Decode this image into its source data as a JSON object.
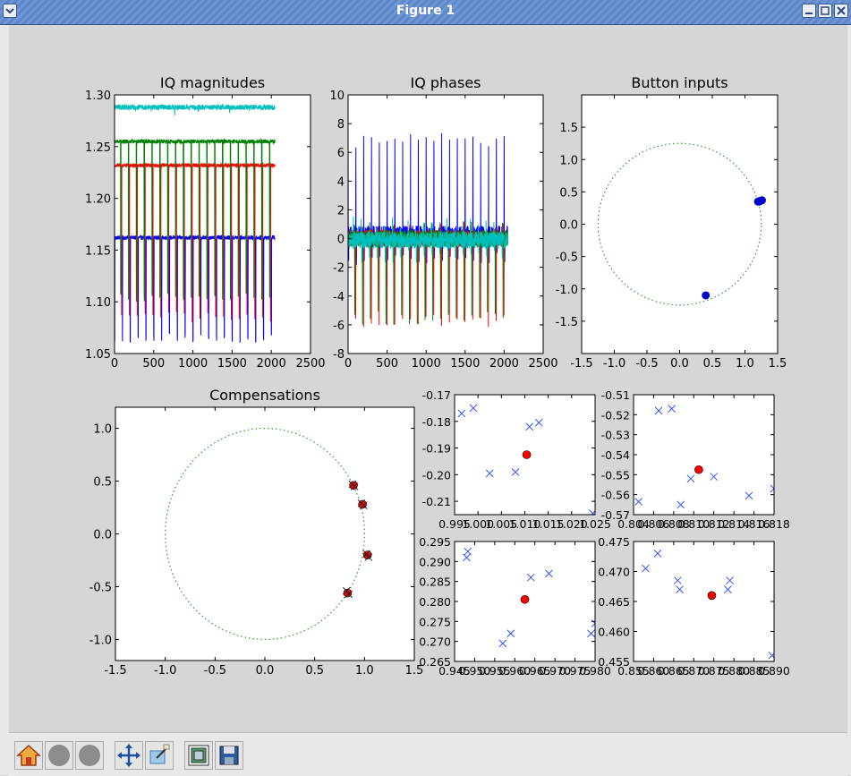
{
  "window": {
    "title": "Figure 1"
  },
  "toolbar": {
    "items": [
      {
        "name": "home",
        "icon": "home-icon"
      },
      {
        "name": "back",
        "icon": "back-icon"
      },
      {
        "name": "forward",
        "icon": "forward-icon"
      },
      {
        "name": "pan",
        "icon": "pan-icon"
      },
      {
        "name": "zoom",
        "icon": "zoom-icon"
      },
      {
        "name": "subplots",
        "icon": "subplots-icon"
      },
      {
        "name": "save",
        "icon": "save-icon"
      }
    ]
  },
  "colors": {
    "series": [
      "#0000ff",
      "#008000",
      "#ff0000",
      "#00bfbf"
    ],
    "circle": "#2ca02c",
    "marker_blue": "#0000cc",
    "marker_red": "#ff0000",
    "marker_x": "#3355ff"
  },
  "chart_data": [
    {
      "type": "line",
      "title": "IQ magnitudes",
      "xlim": [
        0,
        2500
      ],
      "ylim": [
        1.05,
        1.3
      ],
      "xticks": [
        0,
        500,
        1000,
        1500,
        2000,
        2500
      ],
      "xtick_labels": [
        "0",
        "500",
        "1000",
        "1500",
        "2000",
        "2500"
      ],
      "yticks": [
        1.05,
        1.1,
        1.15,
        1.2,
        1.25,
        1.3
      ],
      "ytick_labels": [
        "1.05",
        "1.10",
        "1.15",
        "1.20",
        "1.25",
        "1.30"
      ],
      "samples": 2048,
      "period": 100,
      "series": [
        {
          "color": "#0000ff",
          "level": 1.162,
          "spike": 1.065,
          "noise": 0.002
        },
        {
          "color": "#ff0000",
          "level": 1.232,
          "spike": 1.085,
          "noise": 0.002
        },
        {
          "color": "#008000",
          "level": 1.255,
          "spike": 1.105,
          "noise": 0.002
        },
        {
          "color": "#00bfbf",
          "level": 1.288,
          "spike": 1.285,
          "noise": 0.0025
        }
      ]
    },
    {
      "type": "line",
      "title": "IQ phases",
      "xlim": [
        0,
        2500
      ],
      "ylim": [
        -8,
        10
      ],
      "xticks": [
        0,
        500,
        1000,
        1500,
        2000,
        2500
      ],
      "xtick_labels": [
        "0",
        "500",
        "1000",
        "1500",
        "2000",
        "2500"
      ],
      "yticks": [
        -8,
        -6,
        -4,
        -2,
        0,
        2,
        4,
        6,
        8,
        10
      ],
      "ytick_labels": [
        "-8",
        "-6",
        "-4",
        "-2",
        "0",
        "2",
        "4",
        "6",
        "8",
        "10"
      ],
      "samples": 2048,
      "period": 100,
      "series": [
        {
          "color": "#0000ff",
          "level": 0.2,
          "spike_hi": 6.8,
          "spike_lo": -1.5,
          "noise": 0.7
        },
        {
          "color": "#ff0000",
          "level": 0.0,
          "spike_hi": 0.6,
          "spike_lo": -5.8,
          "noise": 0.6
        },
        {
          "color": "#008000",
          "level": 0.0,
          "spike_hi": 0.9,
          "spike_lo": -5.5,
          "noise": 0.6
        },
        {
          "color": "#00bfbf",
          "level": -0.1,
          "spike_hi": 1.0,
          "spike_lo": -1.2,
          "noise": 0.6
        }
      ]
    },
    {
      "type": "scatter",
      "title": "Button inputs",
      "xlim": [
        -1.5,
        1.5
      ],
      "ylim": [
        -2.0,
        2.0
      ],
      "xticks": [
        -1.5,
        -1.0,
        -0.5,
        0.0,
        0.5,
        1.0,
        1.5
      ],
      "xtick_labels": [
        "-1.5",
        "-1.0",
        "-0.5",
        "0.0",
        "0.5",
        "1.0",
        "1.5"
      ],
      "yticks": [
        -1.5,
        -1.0,
        -0.5,
        0.0,
        0.5,
        1.0,
        1.5
      ],
      "ytick_labels": [
        "-1.5",
        "-1.0",
        "-0.5",
        "0.0",
        "0.5",
        "1.0",
        "1.5"
      ],
      "circle_radius": 1.25,
      "points": [
        [
          1.2,
          0.35
        ],
        [
          1.23,
          0.36
        ],
        [
          1.26,
          0.37
        ],
        [
          1.22,
          0.35
        ],
        [
          0.4,
          -1.1
        ]
      ]
    },
    {
      "type": "scatter",
      "title": "Compensations",
      "xlim": [
        -1.5,
        1.5
      ],
      "ylim": [
        -1.2,
        1.2
      ],
      "xticks": [
        -1.5,
        -1.0,
        -0.5,
        0.0,
        0.5,
        1.0,
        1.5
      ],
      "xtick_labels": [
        "-1.5",
        "-1.0",
        "-0.5",
        "0.0",
        "0.5",
        "1.0",
        "1.5"
      ],
      "yticks": [
        -1.0,
        -0.5,
        0.0,
        0.5,
        1.0
      ],
      "ytick_labels": [
        "-1.0",
        "-0.5",
        "0.0",
        "0.5",
        "1.0"
      ],
      "circle_radius": 1.0,
      "red_points": [
        [
          0.89,
          0.46
        ],
        [
          0.98,
          0.28
        ],
        [
          1.03,
          -0.2
        ],
        [
          0.83,
          -0.56
        ]
      ],
      "x_points": [
        [
          0.88,
          0.47
        ],
        [
          0.9,
          0.45
        ],
        [
          0.97,
          0.29
        ],
        [
          0.99,
          0.27
        ],
        [
          1.02,
          -0.19
        ],
        [
          1.04,
          -0.22
        ],
        [
          0.82,
          -0.54
        ],
        [
          0.84,
          -0.57
        ]
      ]
    },
    {
      "type": "scatter",
      "title": "",
      "xlim": [
        0.995,
        1.025
      ],
      "ylim": [
        -0.215,
        -0.17
      ],
      "xticks": [
        0.995,
        1.0,
        1.005,
        1.01,
        1.015,
        1.02,
        1.025
      ],
      "xtick_labels": [
        "0.995",
        "1.000",
        "1.005",
        "1.010",
        "1.015",
        "1.020",
        "1.025"
      ],
      "yticks": [
        -0.21,
        -0.2,
        -0.19,
        -0.18,
        -0.17
      ],
      "ytick_labels": [
        "-0.21",
        "-0.20",
        "-0.19",
        "-0.18",
        "-0.17"
      ],
      "red_points": [
        [
          1.0104,
          -0.1925
        ]
      ],
      "x_points": [
        [
          0.9965,
          -0.177
        ],
        [
          0.999,
          -0.175
        ],
        [
          1.0025,
          -0.1995
        ],
        [
          1.008,
          -0.199
        ],
        [
          1.011,
          -0.182
        ],
        [
          1.013,
          -0.1805
        ],
        [
          1.0245,
          -0.2145
        ]
      ]
    },
    {
      "type": "scatter",
      "title": "",
      "xlim": [
        0.804,
        0.818
      ],
      "ylim": [
        -0.57,
        -0.51
      ],
      "xticks": [
        0.804,
        0.806,
        0.808,
        0.81,
        0.812,
        0.814,
        0.816,
        0.818
      ],
      "xtick_labels": [
        "0.804",
        "0.806",
        "0.808",
        "0.810",
        "0.812",
        "0.814",
        "0.816",
        "0.818"
      ],
      "yticks": [
        -0.57,
        -0.56,
        -0.55,
        -0.54,
        -0.53,
        -0.52,
        -0.51
      ],
      "ytick_labels": [
        "-0.57",
        "-0.56",
        "-0.55",
        "-0.54",
        "-0.53",
        "-0.52",
        "-0.51"
      ],
      "red_points": [
        [
          0.8105,
          -0.5475
        ]
      ],
      "x_points": [
        [
          0.8045,
          -0.5635
        ],
        [
          0.8065,
          -0.518
        ],
        [
          0.8078,
          -0.517
        ],
        [
          0.8087,
          -0.565
        ],
        [
          0.8097,
          -0.552
        ],
        [
          0.812,
          -0.551
        ],
        [
          0.8155,
          -0.5605
        ],
        [
          0.818,
          -0.557
        ]
      ]
    },
    {
      "type": "scatter",
      "title": "",
      "xlim": [
        0.945,
        0.98
      ],
      "ylim": [
        0.265,
        0.295
      ],
      "xticks": [
        0.945,
        0.95,
        0.955,
        0.96,
        0.965,
        0.97,
        0.975,
        0.98
      ],
      "xtick_labels": [
        "0.945",
        "0.950",
        "0.955",
        "0.960",
        "0.965",
        "0.970",
        "0.975",
        "0.980"
      ],
      "yticks": [
        0.265,
        0.27,
        0.275,
        0.28,
        0.285,
        0.29,
        0.295
      ],
      "ytick_labels": [
        "0.265",
        "0.270",
        "0.275",
        "0.280",
        "0.285",
        "0.290",
        "0.295"
      ],
      "red_points": [
        [
          0.9625,
          0.2805
        ]
      ],
      "x_points": [
        [
          0.948,
          0.291
        ],
        [
          0.9483,
          0.2925
        ],
        [
          0.957,
          0.2695
        ],
        [
          0.959,
          0.272
        ],
        [
          0.964,
          0.286
        ],
        [
          0.9685,
          0.287
        ],
        [
          0.979,
          0.272
        ],
        [
          0.98,
          0.2745
        ]
      ]
    },
    {
      "type": "scatter",
      "title": "",
      "xlim": [
        0.855,
        0.89
      ],
      "ylim": [
        0.455,
        0.475
      ],
      "xticks": [
        0.855,
        0.86,
        0.865,
        0.87,
        0.875,
        0.88,
        0.885,
        0.89
      ],
      "xtick_labels": [
        "0.855",
        "0.860",
        "0.865",
        "0.870",
        "0.875",
        "0.880",
        "0.885",
        "0.890"
      ],
      "yticks": [
        0.455,
        0.46,
        0.465,
        0.47,
        0.475
      ],
      "ytick_labels": [
        "0.455",
        "0.460",
        "0.465",
        "0.470",
        "0.475"
      ],
      "red_points": [
        [
          0.8745,
          0.466
        ]
      ],
      "x_points": [
        [
          0.858,
          0.4705
        ],
        [
          0.861,
          0.473
        ],
        [
          0.866,
          0.4685
        ],
        [
          0.8665,
          0.467
        ],
        [
          0.879,
          0.4685
        ],
        [
          0.8785,
          0.467
        ],
        [
          0.8895,
          0.456
        ]
      ]
    }
  ]
}
